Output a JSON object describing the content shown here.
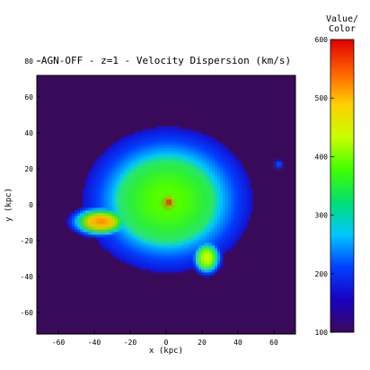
{
  "chart_data": {
    "type": "heatmap",
    "title": "AGN-OFF - z=1 - Velocity Dispersion (km/s)",
    "xlabel": "x (kpc)",
    "ylabel": "y (kpc)",
    "xlim": [
      -72,
      72
    ],
    "ylim": [
      -72,
      72
    ],
    "x_ticks": [
      -60,
      -40,
      -20,
      0,
      20,
      40,
      60
    ],
    "y_ticks": [
      -60,
      -40,
      -20,
      0,
      20,
      40,
      60,
      80
    ],
    "grid": false,
    "colorbar": {
      "title_line1": "Value/",
      "title_line2": "Color",
      "range": [
        100,
        600
      ],
      "ticks": [
        100,
        200,
        300,
        400,
        500,
        600
      ],
      "colors": [
        "#3a0a5a",
        "#1a00c0",
        "#0040ff",
        "#00c8ff",
        "#00e070",
        "#40ff00",
        "#c8ff00",
        "#ffd000",
        "#ff6000",
        "#e00000"
      ]
    },
    "features": [
      {
        "name": "galaxy",
        "x": 0,
        "y": 2,
        "sigma_x": 28,
        "sigma_y": 24,
        "value": 390
      },
      {
        "name": "core",
        "x": 1,
        "y": 1,
        "sigma_x": 3,
        "sigma_y": 3,
        "value": 600
      },
      {
        "name": "satellite-left",
        "x": -37,
        "y": -10,
        "sigma_x": 10,
        "sigma_y": 5,
        "value": 520
      },
      {
        "name": "satellite-bottom",
        "x": 22,
        "y": -30,
        "sigma_x": 5,
        "sigma_y": 6,
        "value": 440
      },
      {
        "name": "satellite-right",
        "x": 62,
        "y": 22,
        "sigma_x": 2,
        "sigma_y": 2,
        "value": 220
      }
    ]
  }
}
